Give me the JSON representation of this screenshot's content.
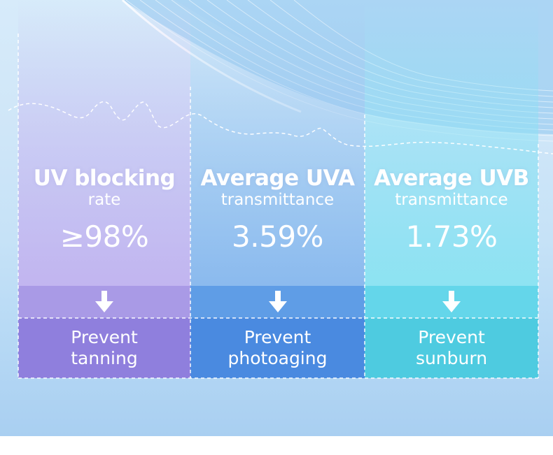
{
  "columns": [
    {
      "title": "UV blocking",
      "subtitle": "rate",
      "value": "≥98%",
      "effect_line1": "Prevent",
      "effect_line2": "tanning"
    },
    {
      "title": "Average UVA",
      "subtitle": "transmittance",
      "value": "3.59%",
      "effect_line1": "Prevent",
      "effect_line2": "photoaging"
    },
    {
      "title": "Average UVB",
      "subtitle": "transmittance",
      "value": "1.73%",
      "effect_line1": "Prevent",
      "effect_line2": "sunburn"
    }
  ],
  "colors": {
    "purple": "#8f7fdd",
    "blue": "#4a8ae0",
    "cyan": "#4ecbe0",
    "background": "#c6e2f7"
  },
  "icons": [
    "down-arrow-icon"
  ]
}
